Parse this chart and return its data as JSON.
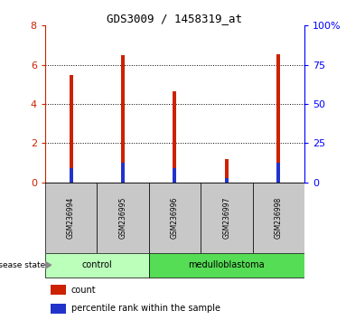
{
  "title": "GDS3009 / 1458319_at",
  "samples": [
    "GSM236994",
    "GSM236995",
    "GSM236996",
    "GSM236997",
    "GSM236998"
  ],
  "red_values": [
    5.5,
    6.5,
    4.65,
    1.2,
    6.55
  ],
  "blue_values": [
    0.75,
    1.0,
    0.75,
    0.2,
    1.0
  ],
  "ylim_left": [
    0,
    8
  ],
  "ylim_right": [
    0,
    100
  ],
  "left_ticks": [
    0,
    2,
    4,
    6,
    8
  ],
  "right_ticks": [
    0,
    25,
    50,
    75,
    100
  ],
  "right_tick_labels": [
    "0",
    "25",
    "50",
    "75",
    "100%"
  ],
  "groups": [
    {
      "label": "control",
      "indices": [
        0,
        1
      ],
      "color": "#bbffbb"
    },
    {
      "label": "medulloblastoma",
      "indices": [
        2,
        3,
        4
      ],
      "color": "#55dd55"
    }
  ],
  "bar_width": 0.07,
  "red_color": "#cc2200",
  "blue_color": "#2233cc",
  "grid_color": "black",
  "sample_bg_color": "#c8c8c8",
  "label_count": "count",
  "label_percentile": "percentile rank within the sample",
  "disease_state_label": "disease state"
}
